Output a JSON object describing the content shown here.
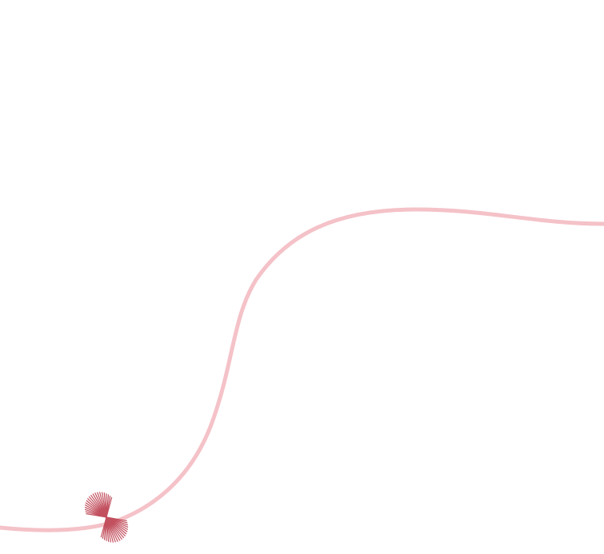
{
  "scene": {
    "background_color": "#ffffff",
    "curve_color": "#f4c2c8",
    "ray_color": "#c2505e",
    "ray_count": 40
  }
}
